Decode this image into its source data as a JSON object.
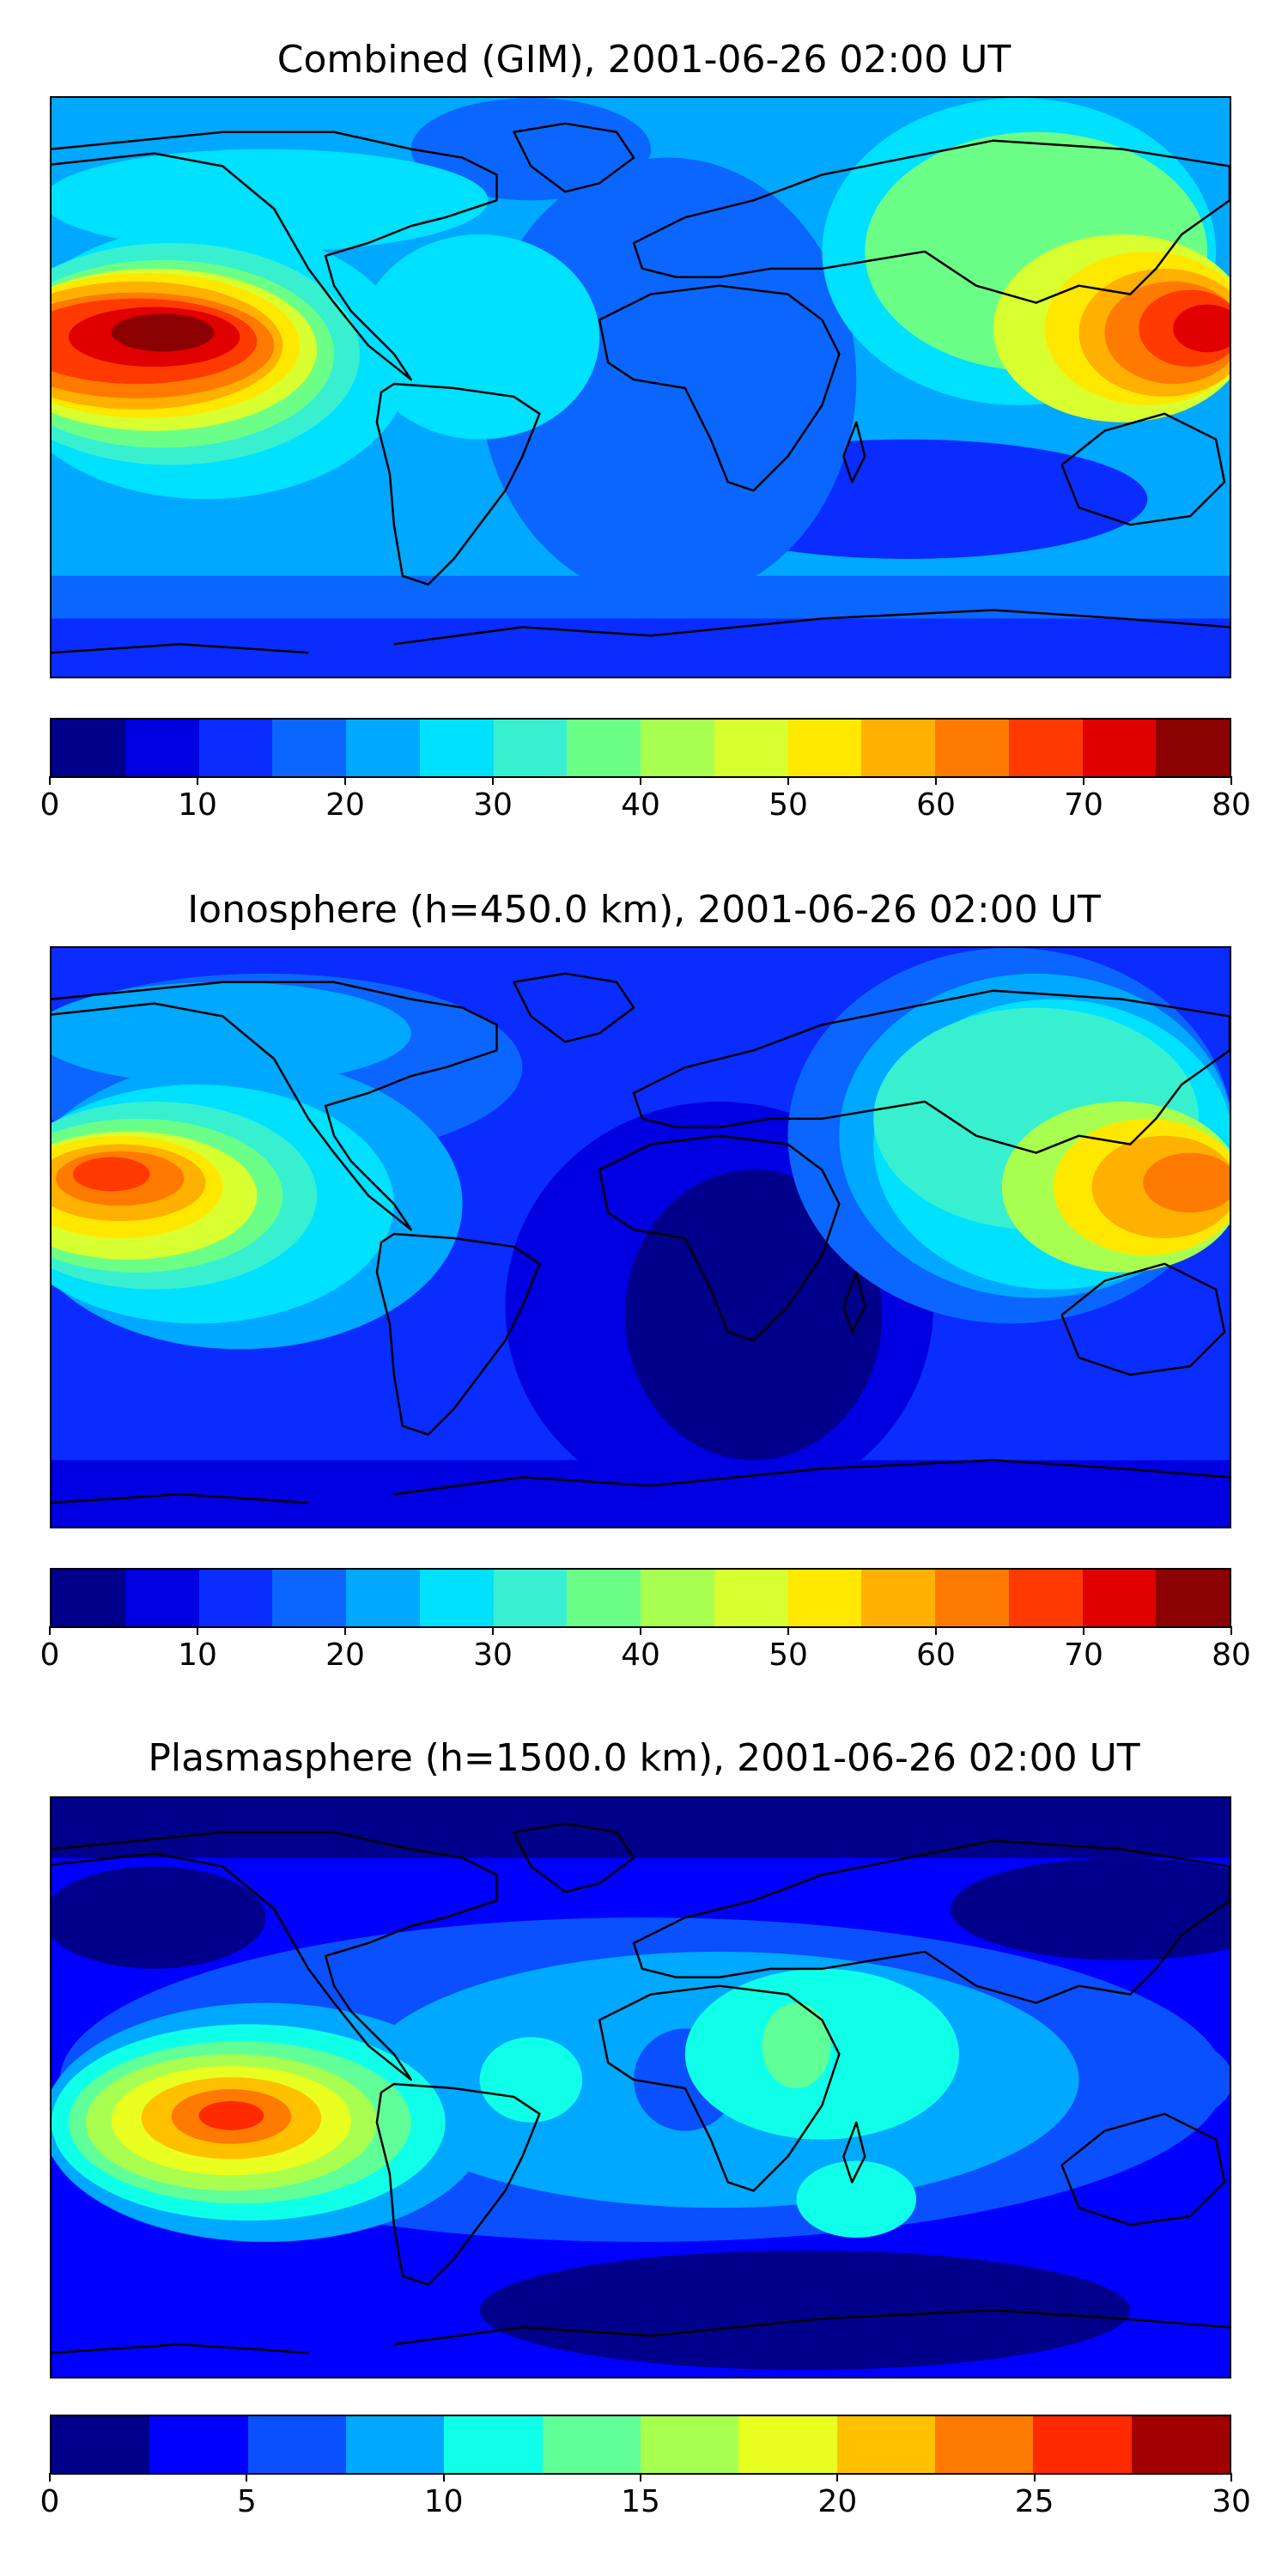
{
  "panels": [
    {
      "title": "Combined (GIM), 2001-06-26 02:00 UT",
      "colorbar": {
        "colors": [
          "#00008b",
          "#0000e0",
          "#0a2cff",
          "#0a66ff",
          "#00a8ff",
          "#00e0ff",
          "#38f0d0",
          "#6cff88",
          "#a8ff50",
          "#d8ff30",
          "#ffe800",
          "#ffb000",
          "#ff7a00",
          "#ff3a00",
          "#e00000",
          "#8b0000"
        ],
        "ticks": [
          "0",
          "10",
          "20",
          "30",
          "40",
          "50",
          "60",
          "70",
          "80"
        ]
      }
    },
    {
      "title": "Ionosphere  (h=450.0 km), 2001-06-26 02:00 UT",
      "colorbar": {
        "colors": [
          "#00008b",
          "#0000e0",
          "#0a2cff",
          "#0a66ff",
          "#00a8ff",
          "#00e0ff",
          "#38f0d0",
          "#6cff88",
          "#a8ff50",
          "#d8ff30",
          "#ffe800",
          "#ffb000",
          "#ff7a00",
          "#ff3a00",
          "#e00000",
          "#8b0000"
        ],
        "ticks": [
          "0",
          "10",
          "20",
          "30",
          "40",
          "50",
          "60",
          "70",
          "80"
        ]
      }
    },
    {
      "title": "Plasmasphere (h=1500.0 km), 2001-06-26 02:00 UT",
      "colorbar": {
        "colors": [
          "#00008b",
          "#0000ff",
          "#0a50ff",
          "#00a8ff",
          "#10ffe8",
          "#60ff98",
          "#a8ff50",
          "#e8ff20",
          "#ffc000",
          "#ff7a00",
          "#ff2a00",
          "#a00000"
        ],
        "ticks": [
          "0",
          "5",
          "10",
          "15",
          "20",
          "25",
          "30"
        ]
      }
    }
  ]
}
